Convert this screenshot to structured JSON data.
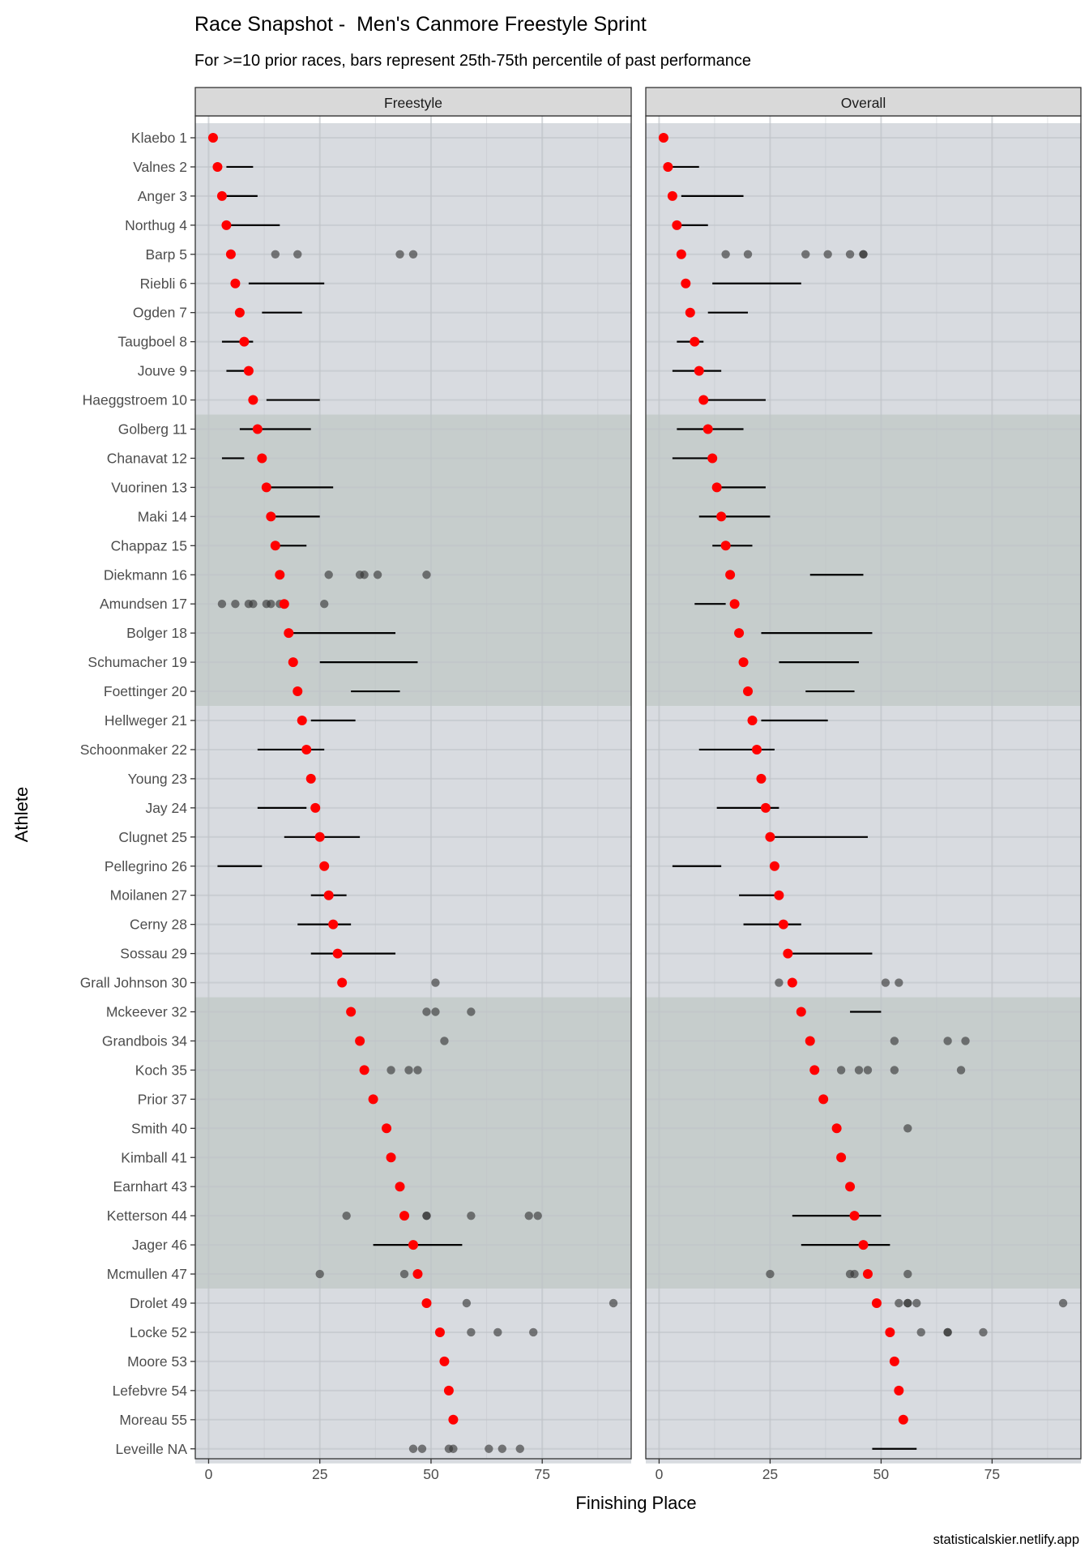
{
  "chart_data": {
    "type": "scatter",
    "title": "Race Snapshot -  Men's Canmore Freestyle Sprint",
    "subtitle": "For >=10 prior races, bars represent 25th-75th percentile of past performance",
    "caption": "statisticalskier.netlify.app",
    "xlabel": "Finishing Place",
    "ylabel": "Athlete",
    "xlim": [
      -3,
      95
    ],
    "x_ticks": [
      0,
      25,
      50,
      75
    ],
    "facets": [
      "Freestyle",
      "Overall"
    ],
    "colors": {
      "current": "#ff0000",
      "past": "#333333",
      "band_light": "#d8dbe0",
      "band_dark": "#c6cdcc",
      "strip": "#d9d9d9",
      "grid": "#ebebeb"
    },
    "bands": [
      {
        "from": 1,
        "to": 10,
        "shade": "light"
      },
      {
        "from": 11,
        "to": 20,
        "shade": "dark"
      },
      {
        "from": 21,
        "to": 30,
        "shade": "light"
      },
      {
        "from": 31,
        "to": 40,
        "shade": "dark"
      },
      {
        "from": 41,
        "to": 46,
        "shade": "light"
      }
    ],
    "athletes": [
      {
        "label": "Klaebo 1",
        "place": 1,
        "fs": {
          "bar": null,
          "past": []
        },
        "ov": {
          "bar": null,
          "past": []
        }
      },
      {
        "label": "Valnes 2",
        "place": 2,
        "fs": {
          "bar": [
            4,
            10
          ],
          "past": []
        },
        "ov": {
          "bar": [
            3,
            9
          ],
          "past": []
        }
      },
      {
        "label": "Anger 3",
        "place": 3,
        "fs": {
          "bar": [
            4,
            11
          ],
          "past": []
        },
        "ov": {
          "bar": [
            5,
            19
          ],
          "past": []
        }
      },
      {
        "label": "Northug 4",
        "place": 4,
        "fs": {
          "bar": [
            5,
            16
          ],
          "past": []
        },
        "ov": {
          "bar": [
            5,
            11
          ],
          "past": []
        }
      },
      {
        "label": "Barp 5",
        "place": 5,
        "fs": {
          "bar": null,
          "past": [
            15,
            20,
            43,
            46
          ]
        },
        "ov": {
          "bar": null,
          "past": [
            15,
            20,
            33,
            38,
            43,
            46,
            46
          ]
        }
      },
      {
        "label": "Riebli 6",
        "place": 6,
        "fs": {
          "bar": [
            9,
            26
          ],
          "past": []
        },
        "ov": {
          "bar": [
            12,
            32
          ],
          "past": []
        }
      },
      {
        "label": "Ogden 7",
        "place": 7,
        "fs": {
          "bar": [
            12,
            21
          ],
          "past": []
        },
        "ov": {
          "bar": [
            11,
            20
          ],
          "past": []
        }
      },
      {
        "label": "Taugboel 8",
        "place": 8,
        "fs": {
          "bar": [
            3,
            10
          ],
          "past": []
        },
        "ov": {
          "bar": [
            4,
            10
          ],
          "past": []
        }
      },
      {
        "label": "Jouve 9",
        "place": 9,
        "fs": {
          "bar": [
            4,
            10
          ],
          "past": []
        },
        "ov": {
          "bar": [
            3,
            14
          ],
          "past": []
        }
      },
      {
        "label": "Haeggstroem 10",
        "place": 10,
        "fs": {
          "bar": [
            13,
            25
          ],
          "past": []
        },
        "ov": {
          "bar": [
            11,
            24
          ],
          "past": []
        }
      },
      {
        "label": "Golberg 11",
        "place": 11,
        "fs": {
          "bar": [
            7,
            23
          ],
          "past": []
        },
        "ov": {
          "bar": [
            4,
            19
          ],
          "past": []
        }
      },
      {
        "label": "Chanavat 12",
        "place": 12,
        "fs": {
          "bar": [
            3,
            8
          ],
          "past": []
        },
        "ov": {
          "bar": [
            3,
            12
          ],
          "past": []
        }
      },
      {
        "label": "Vuorinen 13",
        "place": 13,
        "fs": {
          "bar": [
            14,
            28
          ],
          "past": []
        },
        "ov": {
          "bar": [
            12,
            24
          ],
          "past": []
        }
      },
      {
        "label": "Maki 14",
        "place": 14,
        "fs": {
          "bar": [
            14,
            25
          ],
          "past": []
        },
        "ov": {
          "bar": [
            9,
            25
          ],
          "past": []
        }
      },
      {
        "label": "Chappaz 15",
        "place": 15,
        "fs": {
          "bar": [
            14,
            22
          ],
          "past": []
        },
        "ov": {
          "bar": [
            12,
            21
          ],
          "past": []
        }
      },
      {
        "label": "Diekmann 16",
        "place": 16,
        "fs": {
          "bar": null,
          "past": [
            27,
            34,
            35,
            38,
            49
          ]
        },
        "ov": {
          "bar": [
            34,
            46
          ],
          "past": []
        }
      },
      {
        "label": "Amundsen 17",
        "place": 17,
        "fs": {
          "bar": null,
          "past": [
            3,
            6,
            9,
            10,
            13,
            14,
            16,
            26
          ]
        },
        "ov": {
          "bar": [
            8,
            15
          ],
          "past": []
        }
      },
      {
        "label": "Bolger 18",
        "place": 18,
        "fs": {
          "bar": [
            17,
            42
          ],
          "past": []
        },
        "ov": {
          "bar": [
            23,
            48
          ],
          "past": []
        }
      },
      {
        "label": "Schumacher 19",
        "place": 19,
        "fs": {
          "bar": [
            25,
            47
          ],
          "past": []
        },
        "ov": {
          "bar": [
            27,
            45
          ],
          "past": []
        }
      },
      {
        "label": "Foettinger 20",
        "place": 20,
        "fs": {
          "bar": [
            32,
            43
          ],
          "past": []
        },
        "ov": {
          "bar": [
            33,
            44
          ],
          "past": []
        }
      },
      {
        "label": "Hellweger 21",
        "place": 21,
        "fs": {
          "bar": [
            23,
            33
          ],
          "past": []
        },
        "ov": {
          "bar": [
            23,
            38
          ],
          "past": []
        }
      },
      {
        "label": "Schoonmaker 22",
        "place": 22,
        "fs": {
          "bar": [
            11,
            26
          ],
          "past": []
        },
        "ov": {
          "bar": [
            9,
            26
          ],
          "past": []
        }
      },
      {
        "label": "Young 23",
        "place": 23,
        "fs": {
          "bar": null,
          "past": []
        },
        "ov": {
          "bar": null,
          "past": []
        }
      },
      {
        "label": "Jay 24",
        "place": 24,
        "fs": {
          "bar": [
            11,
            22
          ],
          "past": []
        },
        "ov": {
          "bar": [
            13,
            27
          ],
          "past": []
        }
      },
      {
        "label": "Clugnet 25",
        "place": 25,
        "fs": {
          "bar": [
            17,
            34
          ],
          "past": []
        },
        "ov": {
          "bar": [
            24,
            47
          ],
          "past": []
        }
      },
      {
        "label": "Pellegrino 26",
        "place": 26,
        "fs": {
          "bar": [
            2,
            12
          ],
          "past": []
        },
        "ov": {
          "bar": [
            3,
            14
          ],
          "past": []
        }
      },
      {
        "label": "Moilanen 27",
        "place": 27,
        "fs": {
          "bar": [
            23,
            31
          ],
          "past": []
        },
        "ov": {
          "bar": [
            18,
            28
          ],
          "past": []
        }
      },
      {
        "label": "Cerny 28",
        "place": 28,
        "fs": {
          "bar": [
            20,
            32
          ],
          "past": []
        },
        "ov": {
          "bar": [
            19,
            32
          ],
          "past": []
        }
      },
      {
        "label": "Sossau 29",
        "place": 29,
        "fs": {
          "bar": [
            23,
            42
          ],
          "past": []
        },
        "ov": {
          "bar": [
            30,
            48
          ],
          "past": []
        }
      },
      {
        "label": "Grall Johnson 30",
        "place": 30,
        "fs": {
          "bar": null,
          "past": [
            51
          ]
        },
        "ov": {
          "bar": null,
          "past": [
            27,
            51,
            54
          ]
        }
      },
      {
        "label": "Mckeever 32",
        "place": 32,
        "fs": {
          "bar": null,
          "past": [
            49,
            51,
            59
          ]
        },
        "ov": {
          "bar": [
            43,
            50
          ],
          "past": []
        }
      },
      {
        "label": "Grandbois 34",
        "place": 34,
        "fs": {
          "bar": null,
          "past": [
            53
          ]
        },
        "ov": {
          "bar": null,
          "past": [
            53,
            65,
            69
          ]
        }
      },
      {
        "label": "Koch 35",
        "place": 35,
        "fs": {
          "bar": null,
          "past": [
            41,
            45,
            47
          ]
        },
        "ov": {
          "bar": null,
          "past": [
            41,
            45,
            47,
            53,
            68
          ]
        }
      },
      {
        "label": "Prior 37",
        "place": 37,
        "fs": {
          "bar": null,
          "past": []
        },
        "ov": {
          "bar": null,
          "past": []
        }
      },
      {
        "label": "Smith 40",
        "place": 40,
        "fs": {
          "bar": null,
          "past": []
        },
        "ov": {
          "bar": null,
          "past": [
            56
          ]
        }
      },
      {
        "label": "Kimball 41",
        "place": 41,
        "fs": {
          "bar": null,
          "past": []
        },
        "ov": {
          "bar": null,
          "past": []
        }
      },
      {
        "label": "Earnhart 43",
        "place": 43,
        "fs": {
          "bar": null,
          "past": []
        },
        "ov": {
          "bar": null,
          "past": []
        }
      },
      {
        "label": "Ketterson 44",
        "place": 44,
        "fs": {
          "bar": null,
          "past": [
            31,
            49,
            49,
            59,
            72,
            74
          ]
        },
        "ov": {
          "bar": [
            30,
            50
          ],
          "past": []
        }
      },
      {
        "label": "Jager 46",
        "place": 46,
        "fs": {
          "bar": [
            37,
            57
          ],
          "past": []
        },
        "ov": {
          "bar": [
            32,
            52
          ],
          "past": []
        }
      },
      {
        "label": "Mcmullen 47",
        "place": 47,
        "fs": {
          "bar": null,
          "past": [
            25,
            44
          ]
        },
        "ov": {
          "bar": null,
          "past": [
            25,
            43,
            44,
            47,
            56
          ]
        }
      },
      {
        "label": "Drolet 49",
        "place": 49,
        "fs": {
          "bar": null,
          "past": [
            58,
            91
          ]
        },
        "ov": {
          "bar": null,
          "past": [
            54,
            56,
            56,
            58,
            91
          ]
        }
      },
      {
        "label": "Locke 52",
        "place": 52,
        "fs": {
          "bar": null,
          "past": [
            59,
            65,
            73
          ]
        },
        "ov": {
          "bar": null,
          "past": [
            59,
            65,
            65,
            73
          ]
        }
      },
      {
        "label": "Moore 53",
        "place": 53,
        "fs": {
          "bar": null,
          "past": []
        },
        "ov": {
          "bar": null,
          "past": []
        }
      },
      {
        "label": "Lefebvre 54",
        "place": 54,
        "fs": {
          "bar": null,
          "past": []
        },
        "ov": {
          "bar": null,
          "past": []
        }
      },
      {
        "label": "Moreau 55",
        "place": 55,
        "fs": {
          "bar": null,
          "past": []
        },
        "ov": {
          "bar": null,
          "past": []
        }
      },
      {
        "label": "Leveille NA",
        "place": null,
        "fs": {
          "bar": null,
          "past": [
            46,
            48,
            54,
            55,
            63,
            66,
            70
          ]
        },
        "ov": {
          "bar": [
            48,
            58
          ],
          "past": []
        }
      }
    ]
  }
}
